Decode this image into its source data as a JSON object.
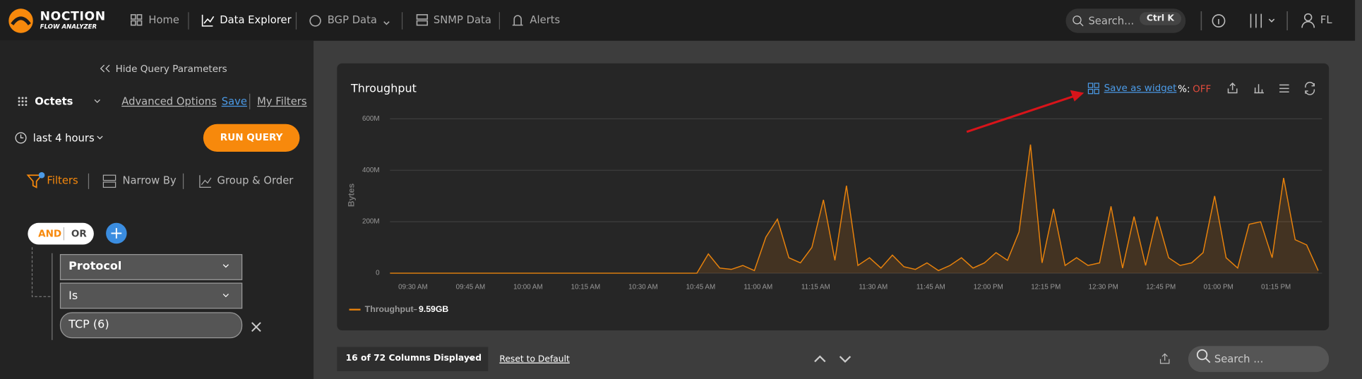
{
  "nav": {
    "logo": [
      "NOCTION",
      "FLOW ANALYZER"
    ],
    "items": [
      "Home",
      "Data Explorer",
      "BGP Data",
      "SNMP Data",
      "Alerts"
    ],
    "search_placeholder": "Search...",
    "shortcut": "Ctrl K",
    "user": "FL"
  },
  "sidebar": {
    "hide": "Hide Query Parameters",
    "metric": "Octets",
    "advanced": "Advanced Options",
    "save": "Save",
    "my_filters": "My Filters",
    "time_range": "last 4 hours",
    "run": "RUN QUERY",
    "tabs": [
      "Filters",
      "Narrow By",
      "Group & Order"
    ],
    "logic": [
      "AND",
      "OR"
    ],
    "filter": {
      "field": "Protocol",
      "operator": "Is",
      "value": "TCP (6)"
    }
  },
  "panel": {
    "title": "Throughput",
    "save_widget": "Save as widget",
    "percent_label": "%:",
    "percent_state": "OFF"
  },
  "chart": {
    "type": "line",
    "y_label": "Bytes",
    "total_label": "9.59GB",
    "xlim": [
      "09:24 AM",
      "01:27 PM"
    ],
    "xticks": [
      "09:30 AM",
      "09:45 AM",
      "10:00 AM",
      "10:15 AM",
      "10:30 AM",
      "10:45 AM",
      "11:00 AM",
      "11:15 AM",
      "11:30 AM",
      "11:45 AM",
      "12:00 PM",
      "12:15 PM",
      "12:30 PM",
      "12:45 PM",
      "01:00 PM",
      "01:15 PM"
    ],
    "ylim": [
      0,
      600000000
    ],
    "yticks": [
      0,
      {
        "value": 200000000,
        "label": "200M"
      },
      {
        "value": 400000000,
        "label": "400M"
      },
      {
        "value": 600000000,
        "label": "600M"
      }
    ],
    "grid": true,
    "x": [
      "09:24 AM",
      "10:44 AM",
      "10:47 AM",
      "10:50 AM",
      "10:53 AM",
      "10:56 AM",
      "10:59 AM",
      "11:02 AM",
      "11:05 AM",
      "11:08 AM",
      "11:11 AM",
      "11:14 AM",
      "11:17 AM",
      "11:20 AM",
      "11:23 AM",
      "11:26 AM",
      "11:29 AM",
      "11:32 AM",
      "11:35 AM",
      "11:38 AM",
      "11:41 AM",
      "11:44 AM",
      "11:47 AM",
      "11:50 AM",
      "11:53 AM",
      "11:56 AM",
      "11:59 AM",
      "12:02 PM",
      "12:05 PM",
      "12:08 PM",
      "12:11 PM",
      "12:14 PM",
      "12:17 PM",
      "12:20 PM",
      "12:23 PM",
      "12:26 PM",
      "12:29 PM",
      "12:32 PM",
      "12:35 PM",
      "12:38 PM",
      "12:41 PM",
      "12:44 PM",
      "12:47 PM",
      "12:50 PM",
      "12:53 PM",
      "12:56 PM",
      "12:59 PM",
      "01:02 PM",
      "01:05 PM",
      "01:08 PM",
      "01:11 PM",
      "01:14 PM",
      "01:17 PM",
      "01:20 PM",
      "01:23 PM",
      "01:26 PM"
    ],
    "series": [
      {
        "name": "Throughput",
        "color": "#e8820c",
        "values": [
          0,
          0,
          75000000,
          20000000,
          15000000,
          30000000,
          10000000,
          140000000,
          210000000,
          60000000,
          40000000,
          100000000,
          285000000,
          50000000,
          340000000,
          30000000,
          60000000,
          20000000,
          70000000,
          25000000,
          15000000,
          40000000,
          10000000,
          30000000,
          60000000,
          20000000,
          40000000,
          80000000,
          50000000,
          160000000,
          500000000,
          40000000,
          250000000,
          30000000,
          60000000,
          30000000,
          40000000,
          260000000,
          20000000,
          220000000,
          30000000,
          220000000,
          60000000,
          30000000,
          40000000,
          80000000,
          300000000,
          60000000,
          20000000,
          190000000,
          200000000,
          60000000,
          370000000,
          130000000,
          110000000,
          10000000
        ]
      }
    ]
  },
  "footer": {
    "columns": "16 of 72 Columns Displayed",
    "reset": "Reset to Default",
    "search_placeholder": "Search ..."
  }
}
